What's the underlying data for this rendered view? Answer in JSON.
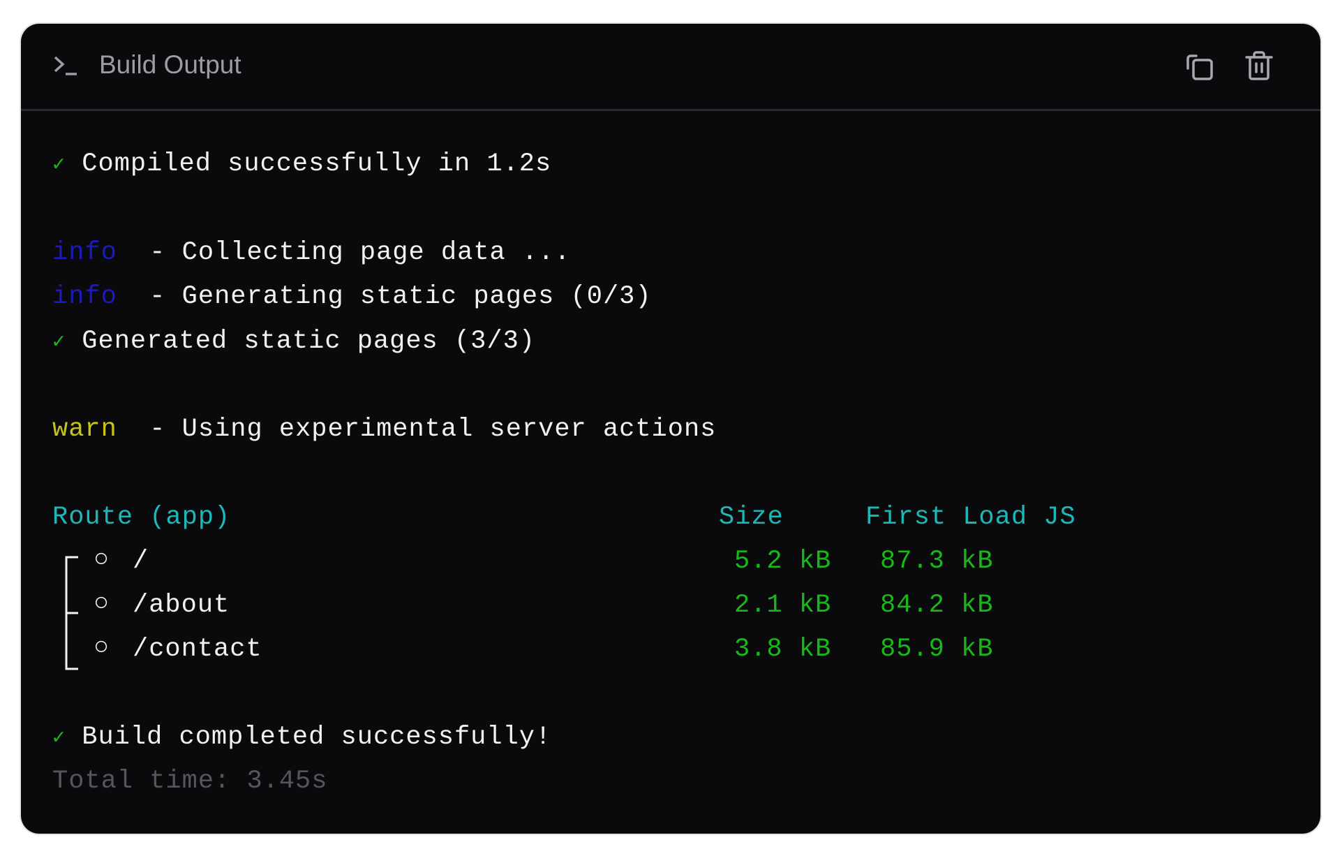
{
  "header": {
    "title": "Build Output",
    "icon": "terminal-icon",
    "actions": [
      {
        "icon": "copy-icon"
      },
      {
        "icon": "trash-icon"
      }
    ]
  },
  "log": {
    "compiled": {
      "mark": "✓",
      "text": "Compiled successfully in 1.2s"
    },
    "info1": {
      "level": "info",
      "text": "- Collecting page data ..."
    },
    "info2": {
      "level": "info",
      "text": "- Generating static pages (0/3)"
    },
    "generated": {
      "mark": "✓",
      "text": "Generated static pages (3/3)"
    },
    "warn": {
      "level": "warn",
      "text": "- Using experimental server actions"
    },
    "routes": {
      "headers": {
        "route": "Route (app)",
        "size": "Size",
        "first_load": "First Load JS"
      },
      "rows": [
        {
          "symbol": "○",
          "path": "/",
          "size": "5.2 kB",
          "first_load": "87.3 kB"
        },
        {
          "symbol": "○",
          "path": "/about",
          "size": "2.1 kB",
          "first_load": "84.2 kB"
        },
        {
          "symbol": "○",
          "path": "/contact",
          "size": "3.8 kB",
          "first_load": "85.9 kB"
        }
      ]
    },
    "done": {
      "mark": "✓",
      "text": "Build completed successfully!"
    },
    "total": "Total time: 3.45s"
  },
  "colors": {
    "success": "#18b818",
    "info": "#1a1abf",
    "warn": "#c4c41c",
    "header": "#1cb8b8",
    "muted": "#55565a",
    "background": "#0a0a0c"
  }
}
